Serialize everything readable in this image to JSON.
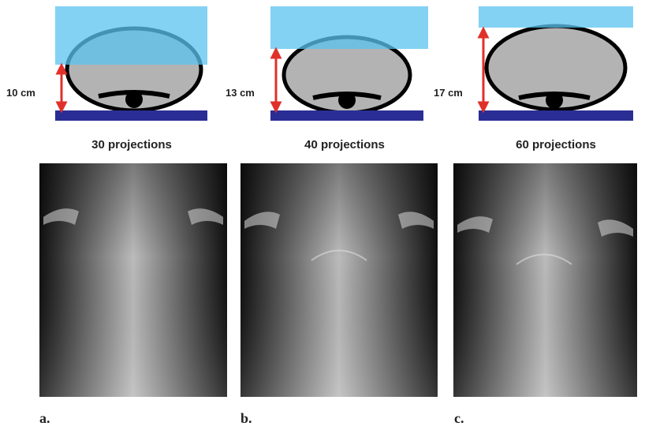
{
  "panels": [
    {
      "distance": "10 cm",
      "projections": "30 projections",
      "label": "a."
    },
    {
      "distance": "13 cm",
      "projections": "40 projections",
      "label": "b."
    },
    {
      "distance": "17 cm",
      "projections": "60 projections",
      "label": "c."
    }
  ]
}
